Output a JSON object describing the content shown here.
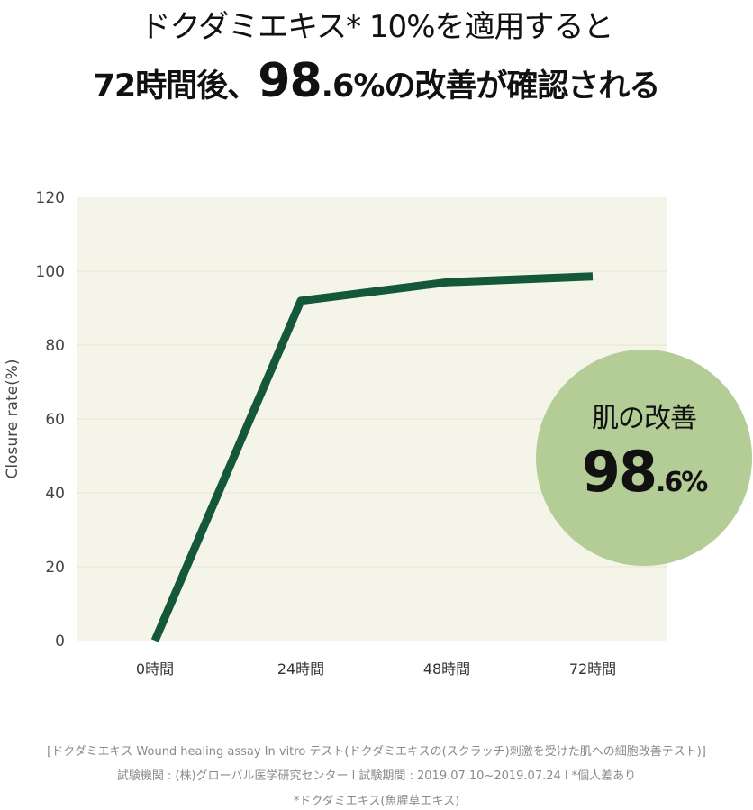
{
  "headline": {
    "line1": "ドクダミエキス* 10%を適用すると",
    "line2_prefix": "72時間後、",
    "line2_value_int": "98",
    "line2_value_dec": ".6%",
    "line2_suffix": "の改善が確認される"
  },
  "badge": {
    "label": "肌の改善",
    "value_int": "98",
    "value_dec": ".6%"
  },
  "chart_data": {
    "type": "line",
    "categories": [
      "0時間",
      "24時間",
      "48時間",
      "72時間"
    ],
    "series": [
      {
        "values": [
          0,
          92,
          97,
          98.6
        ]
      }
    ],
    "ylabel": "Closure rate(%)",
    "xlabel": "",
    "ylim": [
      0,
      120
    ],
    "yticks": [
      0,
      20,
      40,
      60,
      80,
      100,
      120
    ],
    "grid": true,
    "colors": {
      "line": "#14573b",
      "plot_bg": "#f5f4e8",
      "grid": "#e6e5d6",
      "badge": "#b4cc96"
    }
  },
  "footnotes": [
    "[ドクダミエキス Wound healing assay In vitro テスト(ドクダミエキスの(スクラッチ)刺激を受けた肌への細胞改善テスト)]",
    "試験機関 : (株)グローバル医学研究センター l 試験期間 : 2019.07.10~2019.07.24 l *個人差あり",
    "*ドクダミエキス(魚腥草エキス)"
  ]
}
